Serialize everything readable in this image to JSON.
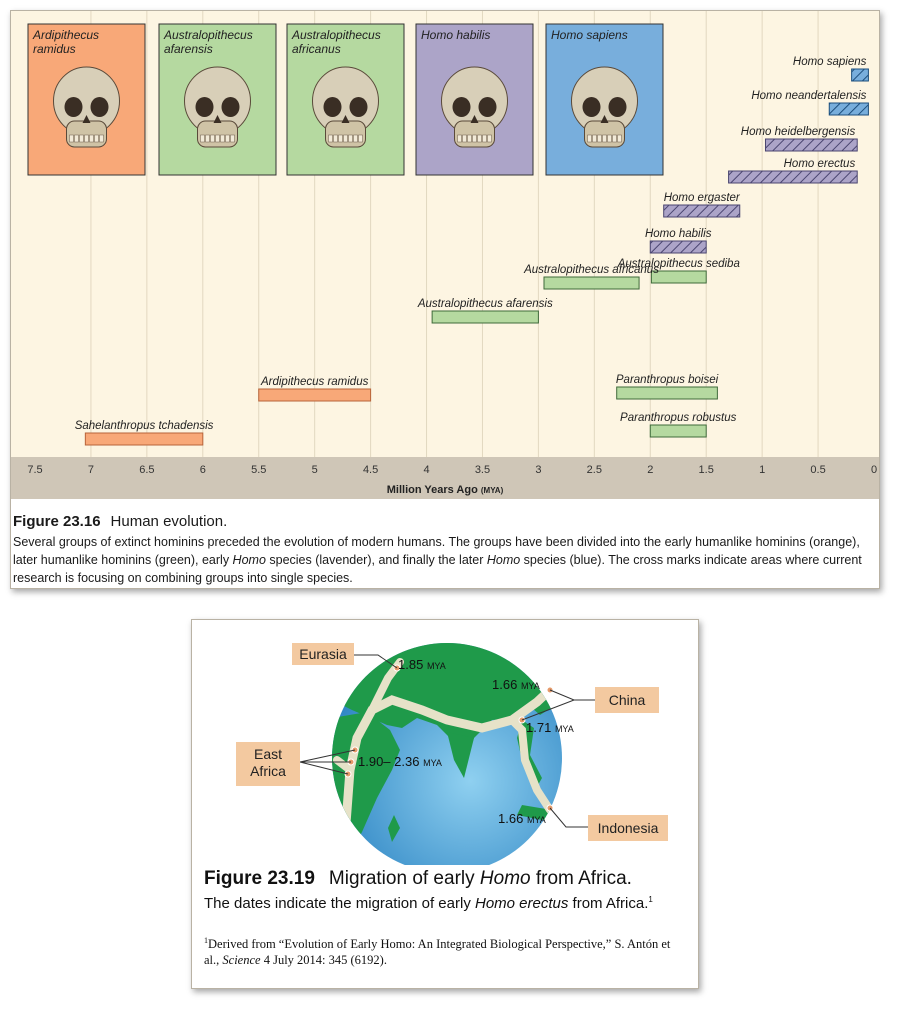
{
  "figure1": {
    "number": "Figure 23.16",
    "title": "Human evolution.",
    "caption_parts": [
      "Several groups of extinct hominins preceded the evolution of modern humans. The groups have been divided into the early humanlike hominins (orange), later humanlike hominins (green), early ",
      "Homo",
      " species (lavender), and finally the later ",
      "Homo",
      " species (blue). The cross marks indicate areas where current research is focusing on combining groups into single species."
    ],
    "photos": [
      {
        "label": "Ardipithecus ramidus",
        "group": "orange"
      },
      {
        "label": "Australopithecus afarensis",
        "group": "green"
      },
      {
        "label": "Australopithecus africanus",
        "group": "green"
      },
      {
        "label": "Homo habilis",
        "group": "lavender"
      },
      {
        "label": "Homo sapiens",
        "group": "blue"
      }
    ]
  },
  "chart_data": {
    "type": "range-bar",
    "xlabel": "Million Years Ago",
    "xlabel_unit": "(MYA)",
    "xlim": [
      7.5,
      0
    ],
    "x_ticks": [
      "7.5",
      "7",
      "6.5",
      "6",
      "5.5",
      "5",
      "4.5",
      "4",
      "3.5",
      "3",
      "2.5",
      "2",
      "1.5",
      "1",
      "0.5",
      "0"
    ],
    "grid": "vertical",
    "colors": {
      "orange": "#f8a878",
      "green": "#b5d9a0",
      "lavender": "#aca4c8",
      "blue": "#78aedc"
    },
    "species": [
      {
        "name": "Homo sapiens",
        "start": 0.2,
        "end": 0.05,
        "group": "blue",
        "hatched": true
      },
      {
        "name": "Homo neandertalensis",
        "start": 0.4,
        "end": 0.05,
        "group": "blue",
        "hatched": true
      },
      {
        "name": "Homo heidelbergensis",
        "start": 0.97,
        "end": 0.15,
        "group": "lavender",
        "hatched": true
      },
      {
        "name": "Homo erectus",
        "start": 1.3,
        "end": 0.15,
        "group": "lavender",
        "hatched": true
      },
      {
        "name": "Homo ergaster",
        "start": 1.88,
        "end": 1.2,
        "group": "lavender",
        "hatched": true
      },
      {
        "name": "Homo habilis",
        "start": 2.0,
        "end": 1.5,
        "group": "lavender",
        "hatched": true
      },
      {
        "name": "Australopithecus sediba",
        "start": 1.99,
        "end": 1.5,
        "group": "green",
        "hatched": false
      },
      {
        "name": "Australopithecus africanus",
        "start": 2.95,
        "end": 2.1,
        "group": "green",
        "hatched": false
      },
      {
        "name": "Australopithecus afarensis",
        "start": 3.95,
        "end": 3.0,
        "group": "green",
        "hatched": false
      },
      {
        "name": "Ardipithecus ramidus",
        "start": 5.5,
        "end": 4.5,
        "group": "orange",
        "hatched": false
      },
      {
        "name": "Paranthropus boisei",
        "start": 2.3,
        "end": 1.4,
        "group": "green",
        "hatched": false
      },
      {
        "name": "Paranthropus robustus",
        "start": 2.0,
        "end": 1.5,
        "group": "green",
        "hatched": false
      },
      {
        "name": "Sahelanthropus tchadensis",
        "start": 7.05,
        "end": 6.0,
        "group": "orange",
        "hatched": false
      }
    ]
  },
  "figure2": {
    "number": "Figure 23.19",
    "title_parts": [
      "Migration of early ",
      "Homo",
      " from Africa."
    ],
    "body_parts": [
      "The dates indicate the migration of early ",
      "Homo erectus",
      " from Africa.",
      "1"
    ],
    "footnote_parts": [
      "1",
      "Derived from “Evolution of Early Homo: An Integrated Biological Perspective,” S. Antón et al., ",
      "Science",
      " 4 July 2014: 345 (6192)."
    ],
    "locations": {
      "eurasia": "Eurasia",
      "china": "China",
      "east_africa": "East Africa",
      "indonesia": "Indonesia"
    },
    "dates": {
      "eurasia": {
        "value": "1.85",
        "unit": "MYA"
      },
      "china_north": {
        "value": "1.66",
        "unit": "MYA"
      },
      "china_south": {
        "value": "1.71",
        "unit": "MYA"
      },
      "east_africa": {
        "value": "1.90– 2.36",
        "unit": "MYA"
      },
      "indonesia": {
        "value": "1.66",
        "unit": "MYA"
      }
    },
    "colors": {
      "ocean": "#4b9fd6",
      "land": "#1f9a4a",
      "route": "#e6e2c8",
      "label_bg": "#f3c9a0"
    }
  }
}
